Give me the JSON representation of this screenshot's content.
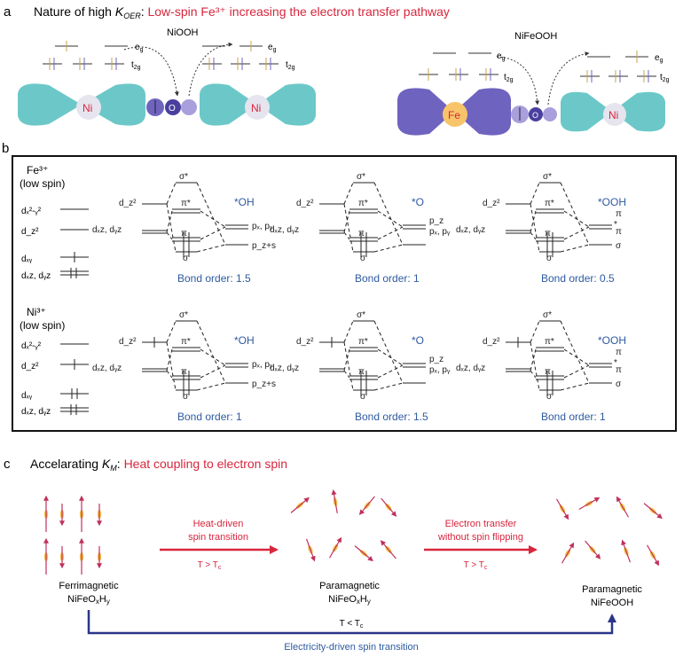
{
  "panel_a": {
    "letter": "a",
    "heading_prefix": "Nature of high ",
    "heading_k": "K",
    "heading_k_sub": "OER",
    "heading_colon": ": ",
    "heading_red": "Low-spin Fe³⁺ increasing the electron transfer pathway",
    "left_title": "NiOOH",
    "right_title": "NiFeOOH",
    "eg_label": "e",
    "eg_sub": "g",
    "t2g_label": "t",
    "t2g_sub": "2g",
    "ni_label": "Ni",
    "fe_label": "Fe",
    "o_label": "O"
  },
  "panel_b": {
    "letter": "b",
    "fe_row_title": "Fe³⁺",
    "ni_row_title": "Ni³⁺",
    "low_spin": "(low spin)",
    "d_x2y2": "dₓ²-ᵧ²",
    "d_z2": "d_z²",
    "d_xy": "dₓᵧ",
    "d_xzyz": "dₓz, dᵧz",
    "sigma_star": "σ*",
    "pi_star": "π*",
    "pi": "π",
    "sigma": "σ",
    "star": "*",
    "px_py": "pₓ, pᵧ",
    "pz_s": "p_z+s",
    "pz": "p_z",
    "adsorbates": [
      "*OH",
      "*O",
      "*OOH"
    ],
    "bond_orders": {
      "fe": [
        "Bond order: 1.5",
        "Bond order: 1",
        "Bond order: 0.5"
      ],
      "ni": [
        "Bond order: 1",
        "Bond order: 1.5",
        "Bond order: 1"
      ]
    }
  },
  "panel_c": {
    "letter": "c",
    "heading_prefix": "Accelarating ",
    "heading_k": "K",
    "heading_k_sub": "M",
    "heading_colon": ": ",
    "heading_red": "Heat coupling to electron spin",
    "arrow1_top": "Heat-driven",
    "arrow1_bottom": "spin transition",
    "arrow1_cond": "T > T",
    "arrow2_top": "Electron transfer",
    "arrow2_bottom": "without spin flipping",
    "arrow2_cond": "T > T",
    "cond_sub": "c",
    "state1_name": "Ferrimagnetic",
    "state2_name": "Paramagnetic",
    "state3_name": "Paramagnetic",
    "state3_formula": "NiFeOOH",
    "bottom_cond": "T < T",
    "bottom_label": "Electricity-driven spin transition"
  },
  "colors": {
    "red": "#d7263d",
    "blue": "#2e5aa0",
    "navy": "#2a3589",
    "teal": "#6cc8c8",
    "purple": "#6f63c0",
    "lilac": "#a99fdc",
    "orange": "#f7c46a",
    "ni_circle": "#e6e4ee"
  }
}
